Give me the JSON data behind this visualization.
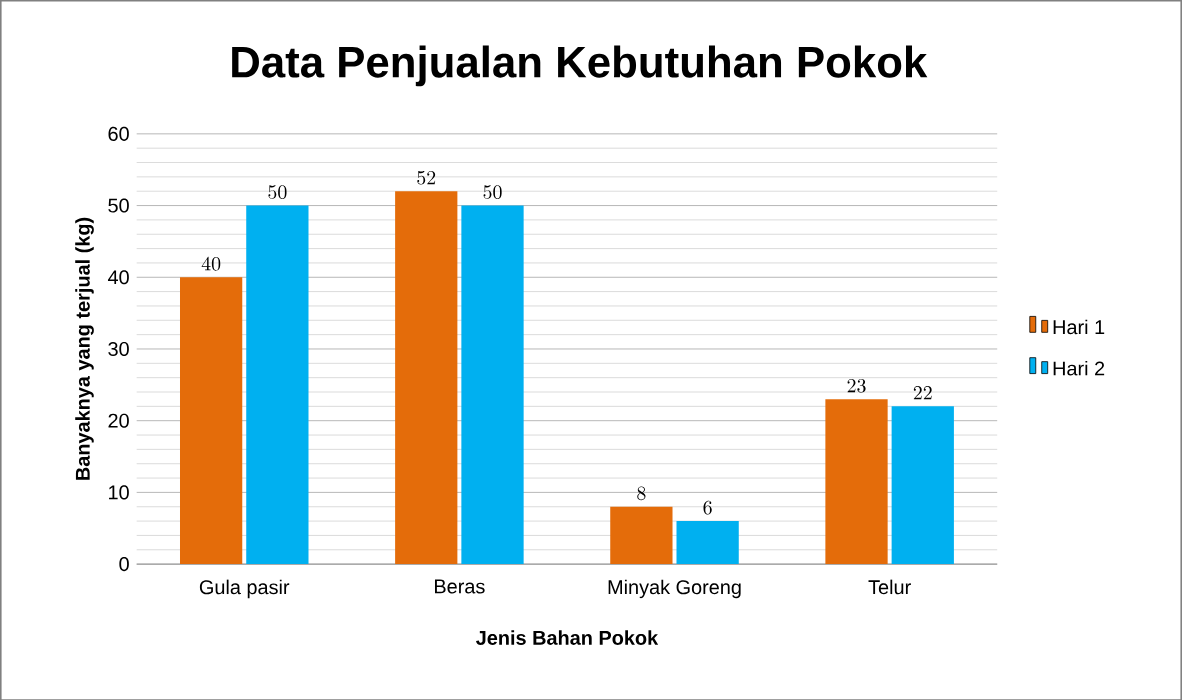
{
  "chart_data": {
    "type": "bar",
    "title": "Data Penjualan Kebutuhan Pokok",
    "xlabel": "Jenis  Bahan Pokok",
    "ylabel": "Banyaknya yang terjual (kg)",
    "categories": [
      "Gula pasir",
      "Beras",
      "Minyak Goreng",
      "Telur"
    ],
    "series": [
      {
        "name": "Hari 1",
        "color": "#e46c0a",
        "values": [
          40,
          52,
          8,
          23
        ]
      },
      {
        "name": "Hari 2",
        "color": "#00b0f0",
        "values": [
          50,
          50,
          6,
          22
        ]
      }
    ],
    "ylim": [
      0,
      60
    ],
    "yticks": [
      0,
      10,
      20,
      30,
      40,
      50,
      60
    ],
    "grid": "y",
    "legend": "right",
    "data_labels": true
  }
}
